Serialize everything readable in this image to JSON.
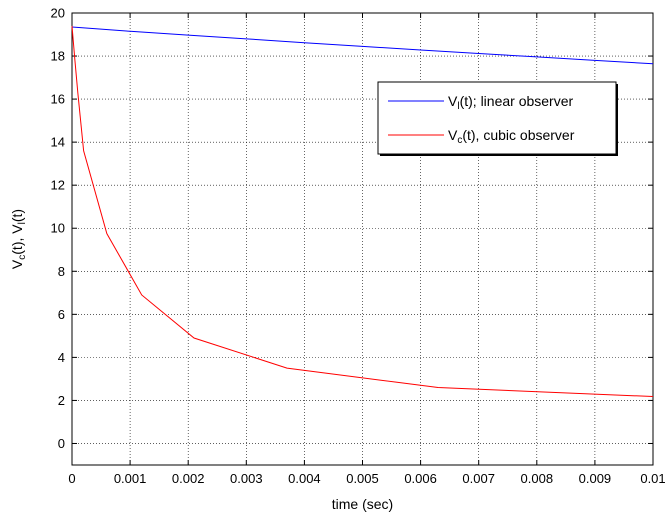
{
  "chart_data": {
    "type": "line",
    "xlabel": "time (sec)",
    "ylabel_parts": {
      "a_main": "V",
      "a_sub": "c",
      "a_rest": "(t), ",
      "b_main": "V",
      "b_sub": "l",
      "b_rest": "(t)"
    },
    "xlim": [
      0,
      0.01
    ],
    "ylim": [
      -1,
      20
    ],
    "grid": true,
    "legend_position": "top-right",
    "x_ticks": [
      0,
      0.001,
      0.002,
      0.003,
      0.004,
      0.005,
      0.006,
      0.007,
      0.008,
      0.009,
      0.01
    ],
    "x_tick_labels": [
      "0",
      "0.001",
      "0.002",
      "0.003",
      "0.004",
      "0.005",
      "0.006",
      "0.007",
      "0.008",
      "0.009",
      "0.01"
    ],
    "y_ticks": [
      0,
      2,
      4,
      6,
      8,
      10,
      12,
      14,
      16,
      18,
      20
    ],
    "y_tick_labels": [
      "0",
      "2",
      "4",
      "6",
      "8",
      "10",
      "12",
      "14",
      "16",
      "18",
      "20"
    ],
    "series": [
      {
        "key": "linear",
        "legend_main": "V",
        "legend_sub": "l",
        "legend_rest": "(t); linear observer",
        "color": "#0000ff",
        "x": [
          0,
          0.0005,
          0.001,
          0.002,
          0.003,
          0.004,
          0.005,
          0.006,
          0.007,
          0.008,
          0.009,
          0.01
        ],
        "y": [
          19.35,
          19.25,
          19.15,
          18.97,
          18.8,
          18.62,
          18.45,
          18.28,
          18.12,
          17.96,
          17.8,
          17.64
        ]
      },
      {
        "key": "cubic",
        "legend_main": "V",
        "legend_sub": "c",
        "legend_rest": "(t), cubic observer",
        "color": "#ff0000",
        "x": [
          0,
          5e-05,
          0.0001,
          0.0002,
          0.0006,
          0.0012,
          0.0021,
          0.0037,
          0.0063,
          0.01
        ],
        "y": [
          19.4,
          17.8,
          16.3,
          13.6,
          9.75,
          6.9,
          4.9,
          3.5,
          2.6,
          2.18
        ]
      }
    ]
  }
}
